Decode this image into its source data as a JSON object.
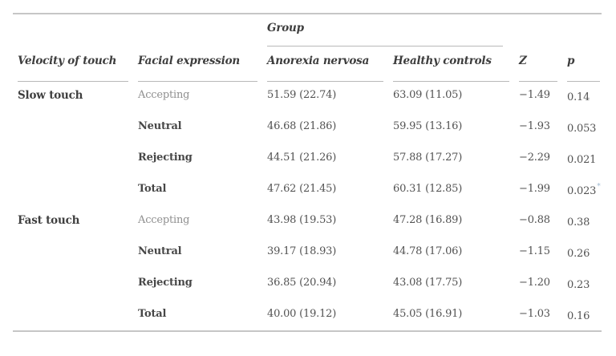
{
  "colors": {
    "rule": "#c6c6c6",
    "text_dark": "#3d3d3d",
    "text_body": "#525252",
    "text_muted": "#8f8f8f",
    "superscript_accent": "#9fb9d0"
  },
  "table": {
    "group_header": "Group",
    "columns": [
      {
        "label": "Velocity of touch"
      },
      {
        "label": "Facial expression"
      },
      {
        "label": "Anorexia nervosa"
      },
      {
        "label": "Healthy controls"
      },
      {
        "label": "Z"
      },
      {
        "label": "p"
      }
    ],
    "rows": [
      {
        "velocity": "Slow touch",
        "expression": "Accepting",
        "muted": true,
        "anorexia_nervosa": "51.59 (22.74)",
        "healthy_controls": "63.09 (11.05)",
        "z": "−1.49",
        "p": "0.14",
        "p_superscript": ""
      },
      {
        "velocity": "",
        "expression": "Neutral",
        "muted": false,
        "anorexia_nervosa": "46.68 (21.86)",
        "healthy_controls": "59.95 (13.16)",
        "z": "−1.93",
        "p": "0.053",
        "p_superscript": ""
      },
      {
        "velocity": "",
        "expression": "Rejecting",
        "muted": false,
        "anorexia_nervosa": "44.51 (21.26)",
        "healthy_controls": "57.88 (17.27)",
        "z": "−2.29",
        "p": "0.021",
        "p_superscript": ""
      },
      {
        "velocity": "",
        "expression": "Total",
        "muted": false,
        "anorexia_nervosa": "47.62 (21.45)",
        "healthy_controls": "60.31 (12.85)",
        "z": "−1.99",
        "p": "0.023",
        "p_superscript": "*"
      },
      {
        "velocity": "Fast touch",
        "expression": "Accepting",
        "muted": true,
        "anorexia_nervosa": "43.98 (19.53)",
        "healthy_controls": "47.28 (16.89)",
        "z": "−0.88",
        "p": "0.38",
        "p_superscript": ""
      },
      {
        "velocity": "",
        "expression": "Neutral",
        "muted": false,
        "anorexia_nervosa": "39.17 (18.93)",
        "healthy_controls": "44.78 (17.06)",
        "z": "−1.15",
        "p": "0.26",
        "p_superscript": ""
      },
      {
        "velocity": "",
        "expression": "Rejecting",
        "muted": false,
        "anorexia_nervosa": "36.85 (20.94)",
        "healthy_controls": "43.08 (17.75)",
        "z": "−1.20",
        "p": "0.23",
        "p_superscript": ""
      },
      {
        "velocity": "",
        "expression": "Total",
        "muted": false,
        "anorexia_nervosa": "40.00 (19.12)",
        "healthy_controls": "45.05 (16.91)",
        "z": "−1.03",
        "p": "0.16",
        "p_superscript": ""
      }
    ]
  }
}
